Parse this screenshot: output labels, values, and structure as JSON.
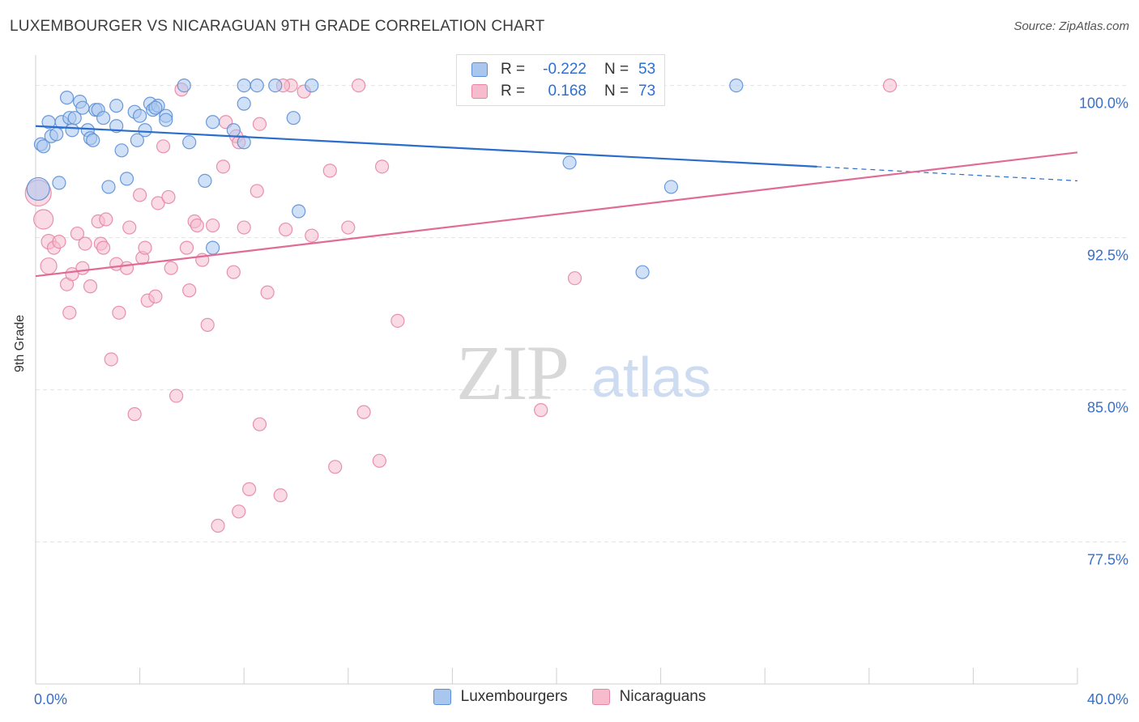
{
  "header": {
    "title": "LUXEMBOURGER VS NICARAGUAN 9TH GRADE CORRELATION CHART",
    "source": "Source: ZipAtlas.com"
  },
  "watermark": {
    "zip": "ZIP",
    "atlas": "atlas"
  },
  "legend_top": {
    "rows": [
      {
        "r_label": "R =",
        "r_value": "-0.222",
        "n_label": "N =",
        "n_value": "53"
      },
      {
        "r_label": "R =",
        "r_value": "0.168",
        "n_label": "N =",
        "n_value": "73"
      }
    ]
  },
  "legend_bottom": {
    "items": [
      {
        "label": "Luxembourgers"
      },
      {
        "label": "Nicaraguans"
      }
    ]
  },
  "colors": {
    "blue_fill": "#a9c6ee",
    "blue_stroke": "#5b8fd6",
    "blue_line": "#2a6dcc",
    "pink_fill": "#f6bccd",
    "pink_stroke": "#e686a4",
    "pink_line": "#e06b97",
    "tick_text": "#3a6fc4",
    "grid": "#e3e3e3"
  },
  "chart_data": {
    "type": "scatter",
    "title": "LUXEMBOURGER VS NICARAGUAN 9TH GRADE CORRELATION CHART",
    "xlabel": "",
    "ylabel": "9th Grade",
    "xlim": [
      0,
      40
    ],
    "ylim": [
      70.5,
      101.5
    ],
    "x_ticks": [
      0,
      4,
      8,
      12,
      16,
      20,
      24,
      28,
      32,
      36,
      40
    ],
    "x_tick_labels": {
      "left": "0.0%",
      "right": "40.0%"
    },
    "y_ticks": [
      77.5,
      85.0,
      92.5,
      100.0
    ],
    "y_tick_labels": [
      "77.5%",
      "85.0%",
      "92.5%",
      "100.0%"
    ],
    "grid": true,
    "legend_placement": "bottom-center",
    "series": [
      {
        "name": "Luxembourgers",
        "r": -0.222,
        "n": 53,
        "trend": {
          "x0": 0,
          "y0": 98.0,
          "x1": 30,
          "y1": 96.0,
          "dash_to_x": 40,
          "dash_to_y": 95.3
        },
        "points": [
          [
            0.1,
            94.9,
            14
          ],
          [
            0.2,
            97.1,
            8
          ],
          [
            0.3,
            97.0,
            8
          ],
          [
            0.5,
            98.2,
            8
          ],
          [
            0.6,
            97.5,
            8
          ],
          [
            0.8,
            97.6,
            8
          ],
          [
            0.9,
            95.2,
            8
          ],
          [
            1.0,
            98.2,
            8
          ],
          [
            1.2,
            99.4,
            8
          ],
          [
            1.3,
            98.4,
            8
          ],
          [
            1.4,
            97.8,
            8
          ],
          [
            1.5,
            98.4,
            8
          ],
          [
            1.7,
            99.2,
            8
          ],
          [
            1.8,
            98.9,
            8
          ],
          [
            2.0,
            97.8,
            8
          ],
          [
            2.1,
            97.4,
            8
          ],
          [
            2.2,
            97.3,
            8
          ],
          [
            2.3,
            98.8,
            8
          ],
          [
            2.4,
            98.8,
            8
          ],
          [
            2.6,
            98.4,
            8
          ],
          [
            2.8,
            95.0,
            8
          ],
          [
            3.1,
            99.0,
            8
          ],
          [
            3.1,
            98.0,
            8
          ],
          [
            3.3,
            96.8,
            8
          ],
          [
            3.5,
            95.4,
            8
          ],
          [
            3.8,
            98.7,
            8
          ],
          [
            3.9,
            97.3,
            8
          ],
          [
            4.0,
            98.5,
            8
          ],
          [
            4.2,
            97.8,
            8
          ],
          [
            4.4,
            99.1,
            8
          ],
          [
            4.5,
            98.8,
            8
          ],
          [
            4.7,
            99.0,
            8
          ],
          [
            5.0,
            98.5,
            8
          ],
          [
            5.0,
            98.3,
            8
          ],
          [
            5.7,
            100.0,
            8
          ],
          [
            5.9,
            97.2,
            8
          ],
          [
            6.5,
            95.3,
            8
          ],
          [
            6.8,
            98.2,
            8
          ],
          [
            6.8,
            92.0,
            8
          ],
          [
            7.6,
            97.8,
            8
          ],
          [
            8.0,
            100.0,
            8
          ],
          [
            8.0,
            99.1,
            8
          ],
          [
            8.0,
            97.2,
            8
          ],
          [
            8.5,
            100.0,
            8
          ],
          [
            9.2,
            100.0,
            8
          ],
          [
            9.9,
            98.4,
            8
          ],
          [
            10.1,
            93.8,
            8
          ],
          [
            10.6,
            100.0,
            8
          ],
          [
            20.5,
            96.2,
            8
          ],
          [
            24.4,
            95.0,
            8
          ],
          [
            23.3,
            90.8,
            8
          ],
          [
            26.9,
            100.0,
            8
          ],
          [
            4.6,
            98.9,
            8
          ]
        ]
      },
      {
        "name": "Nicaraguans",
        "r": 0.168,
        "n": 73,
        "trend": {
          "x0": 0,
          "y0": 90.6,
          "x1": 40,
          "y1": 96.7
        },
        "points": [
          [
            0.1,
            94.7,
            16
          ],
          [
            0.3,
            93.4,
            12
          ],
          [
            0.5,
            91.1,
            10
          ],
          [
            0.5,
            92.3,
            9
          ],
          [
            0.7,
            92.0,
            8
          ],
          [
            0.9,
            92.3,
            8
          ],
          [
            1.2,
            90.2,
            8
          ],
          [
            1.3,
            88.8,
            8
          ],
          [
            1.4,
            90.7,
            8
          ],
          [
            1.6,
            92.7,
            8
          ],
          [
            1.8,
            91.0,
            8
          ],
          [
            1.9,
            92.2,
            8
          ],
          [
            2.1,
            90.1,
            8
          ],
          [
            2.4,
            93.3,
            8
          ],
          [
            2.5,
            92.2,
            8
          ],
          [
            2.6,
            92.0,
            8
          ],
          [
            2.7,
            93.4,
            8
          ],
          [
            2.9,
            86.5,
            8
          ],
          [
            3.1,
            91.2,
            8
          ],
          [
            3.2,
            88.8,
            8
          ],
          [
            3.5,
            91.0,
            8
          ],
          [
            3.6,
            93.0,
            8
          ],
          [
            3.8,
            83.8,
            8
          ],
          [
            4.0,
            94.6,
            8
          ],
          [
            4.1,
            91.5,
            8
          ],
          [
            4.2,
            92.0,
            8
          ],
          [
            4.3,
            89.4,
            8
          ],
          [
            4.6,
            89.6,
            8
          ],
          [
            4.7,
            94.2,
            8
          ],
          [
            4.9,
            97.0,
            8
          ],
          [
            5.1,
            94.5,
            8
          ],
          [
            5.2,
            91.0,
            8
          ],
          [
            5.4,
            84.7,
            8
          ],
          [
            5.6,
            99.8,
            8
          ],
          [
            5.8,
            92.0,
            8
          ],
          [
            5.9,
            89.9,
            8
          ],
          [
            6.1,
            93.3,
            8
          ],
          [
            6.2,
            93.1,
            8
          ],
          [
            6.4,
            91.4,
            8
          ],
          [
            6.6,
            88.2,
            8
          ],
          [
            6.8,
            93.1,
            8
          ],
          [
            7.0,
            78.3,
            8
          ],
          [
            7.2,
            96.0,
            8
          ],
          [
            7.3,
            98.2,
            8
          ],
          [
            7.6,
            90.8,
            8
          ],
          [
            7.7,
            97.5,
            8
          ],
          [
            7.8,
            97.2,
            8
          ],
          [
            7.8,
            79.0,
            8
          ],
          [
            8.0,
            93.0,
            8
          ],
          [
            8.2,
            80.1,
            8
          ],
          [
            8.5,
            94.8,
            8
          ],
          [
            8.6,
            98.1,
            8
          ],
          [
            8.6,
            83.3,
            8
          ],
          [
            8.9,
            89.8,
            8
          ],
          [
            9.4,
            79.8,
            8
          ],
          [
            9.6,
            92.9,
            8
          ],
          [
            9.8,
            100.0,
            8
          ],
          [
            10.3,
            99.7,
            8
          ],
          [
            10.6,
            92.6,
            8
          ],
          [
            11.3,
            95.8,
            8
          ],
          [
            11.5,
            81.2,
            8
          ],
          [
            12.0,
            93.0,
            8
          ],
          [
            12.4,
            100.0,
            8
          ],
          [
            12.6,
            83.9,
            8
          ],
          [
            13.2,
            81.5,
            8
          ],
          [
            13.3,
            96.0,
            8
          ],
          [
            13.9,
            88.4,
            8
          ],
          [
            19.4,
            84.0,
            8
          ],
          [
            20.7,
            90.5,
            8
          ],
          [
            21.1,
            100.0,
            8
          ],
          [
            23.9,
            100.0,
            8
          ],
          [
            32.8,
            100.0,
            8
          ],
          [
            9.5,
            100.0,
            8
          ]
        ]
      }
    ]
  }
}
